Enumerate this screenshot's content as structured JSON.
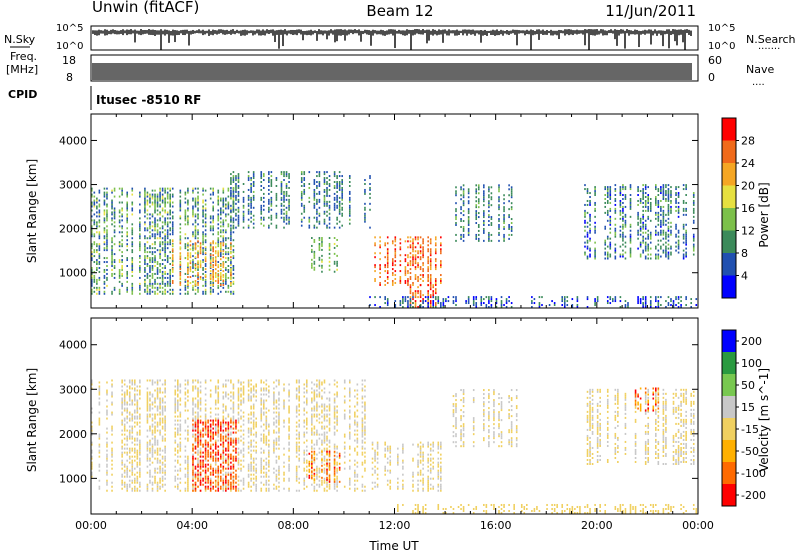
{
  "header": {
    "station": "Unwin (fitACF)",
    "beam": "Beam 12",
    "date": "11/Jun/2011"
  },
  "noise_panel": {
    "left_label": "N.Sky",
    "right_label": "N.Search",
    "right_dots": "·······",
    "top_tick": "10^5",
    "bottom_tick": "10^0"
  },
  "freq_panel": {
    "left_label_1": "Freq.",
    "left_label_2": "[MHz]",
    "left_top": "18",
    "left_bottom": "8",
    "right_label": "Nave",
    "right_dots": "····",
    "right_top": "60",
    "right_bottom": "0"
  },
  "cpid": {
    "label": "CPID",
    "value": "Itusec -8510 RF"
  },
  "colors": {
    "power_scale": [
      "#0000ff",
      "#2050b0",
      "#3b8a5a",
      "#7cc04a",
      "#e6e040",
      "#f5a623",
      "#f06a1a",
      "#ff0000"
    ],
    "velocity_scale": [
      "#ff0000",
      "#ff6a00",
      "#ffb000",
      "#f0d060",
      "#c8c8c8",
      "#78c850",
      "#2a9a40",
      "#0000ff"
    ]
  },
  "chart_data": [
    {
      "type": "heatmap",
      "name": "power-panel",
      "xlabel": "",
      "ylabel": "Slant Range [km]",
      "ylim": [
        200,
        4600
      ],
      "yticks": [
        "1000",
        "2000",
        "3000",
        "4000"
      ],
      "colorbar": {
        "label": "Power [dB]",
        "ticks": [
          "4",
          "8",
          "12",
          "16",
          "20",
          "24",
          "28"
        ],
        "range": [
          0,
          30
        ]
      },
      "regions": [
        {
          "t0": 0.0,
          "t1": 5.6,
          "r0": 500,
          "r1": 2900,
          "val": 10,
          "spread": 6
        },
        {
          "t0": 3.2,
          "t1": 5.5,
          "r0": 700,
          "r1": 1700,
          "val": 20,
          "spread": 5
        },
        {
          "t0": 5.5,
          "t1": 11.0,
          "r0": 2000,
          "r1": 3300,
          "val": 8,
          "spread": 4
        },
        {
          "t0": 8.5,
          "t1": 9.8,
          "r0": 1000,
          "r1": 1800,
          "val": 12,
          "spread": 4
        },
        {
          "t0": 11.2,
          "t1": 13.8,
          "r0": 700,
          "r1": 1800,
          "val": 24,
          "spread": 5
        },
        {
          "t0": 12.4,
          "t1": 13.8,
          "r0": 200,
          "r1": 700,
          "val": 24,
          "spread": 4
        },
        {
          "t0": 14.3,
          "t1": 17.0,
          "r0": 1700,
          "r1": 3000,
          "val": 8,
          "spread": 4
        },
        {
          "t0": 19.5,
          "t1": 24.0,
          "r0": 1300,
          "r1": 3000,
          "val": 8,
          "spread": 5
        },
        {
          "t0": 11.0,
          "t1": 24.0,
          "r0": 200,
          "r1": 450,
          "val": 6,
          "spread": 5
        }
      ]
    },
    {
      "type": "heatmap",
      "name": "velocity-panel",
      "xlabel": "Time UT",
      "ylabel": "Slant Range [km]",
      "ylim": [
        200,
        4600
      ],
      "xticks": [
        "00:00",
        "04:00",
        "08:00",
        "12:00",
        "16:00",
        "20:00",
        "00:00"
      ],
      "yticks": [
        "1000",
        "2000",
        "3000",
        "4000"
      ],
      "colorbar": {
        "label": "Velocity [m s^-1]",
        "ticks": [
          "-200",
          "-100",
          "-50",
          "-15",
          "15",
          "50",
          "100",
          "200"
        ],
        "range": [
          -250,
          250
        ]
      },
      "regions": [
        {
          "t0": 0.0,
          "t1": 11.0,
          "r0": 700,
          "r1": 3200,
          "val": 0,
          "spread": 8
        },
        {
          "t0": 4.0,
          "t1": 5.7,
          "r0": 700,
          "r1": 2300,
          "val": -180,
          "spread": 50
        },
        {
          "t0": 8.6,
          "t1": 9.9,
          "r0": 900,
          "r1": 1600,
          "val": -150,
          "spread": 60
        },
        {
          "t0": 11.0,
          "t1": 13.8,
          "r0": 700,
          "r1": 1800,
          "val": 0,
          "spread": 6
        },
        {
          "t0": 14.3,
          "t1": 17.0,
          "r0": 1700,
          "r1": 3000,
          "val": 0,
          "spread": 10
        },
        {
          "t0": 19.5,
          "t1": 24.0,
          "r0": 1300,
          "r1": 3000,
          "val": 0,
          "spread": 10
        },
        {
          "t0": 21.5,
          "t1": 22.5,
          "r0": 2500,
          "r1": 3000,
          "val": -150,
          "spread": 100
        },
        {
          "t0": 12.0,
          "t1": 24.0,
          "r0": 200,
          "r1": 400,
          "val": -30,
          "spread": 25
        }
      ]
    }
  ]
}
